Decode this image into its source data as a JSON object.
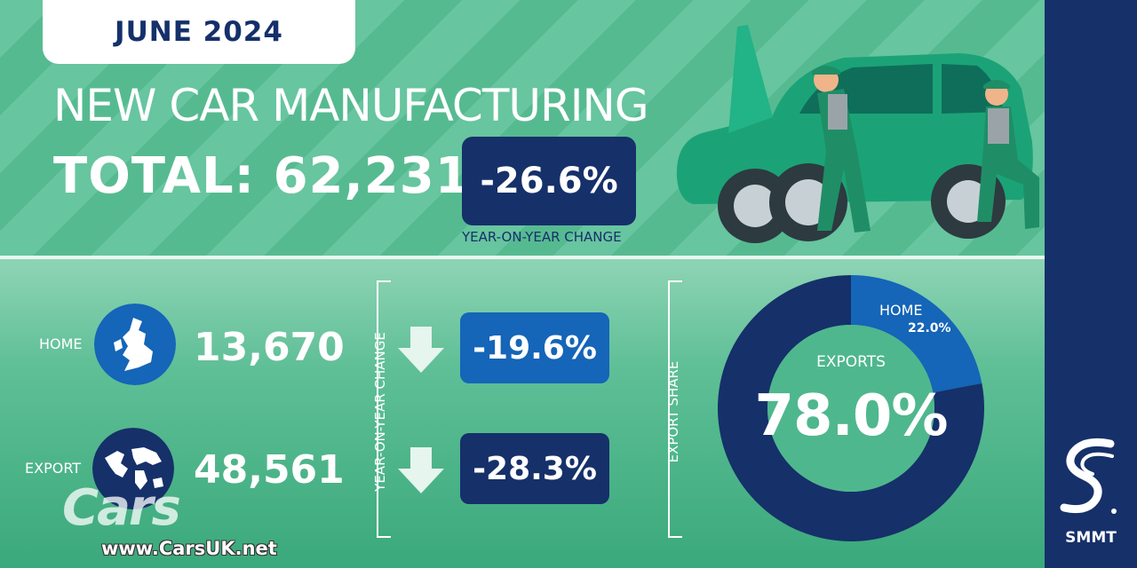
{
  "header": {
    "date": "JUNE 2024",
    "title": "NEW CAR MANUFACTURING",
    "total_text": "TOTAL: 62,231",
    "total_change": "-26.6%",
    "total_change_label": "YEAR-ON-YEAR CHANGE"
  },
  "rows": [
    {
      "label": "HOME",
      "value": "13,670",
      "change": "-19.6%",
      "box_color": "#1565b8"
    },
    {
      "label": "EXPORT",
      "value": "48,561",
      "change": "-28.3%",
      "box_color": "#16306a"
    }
  ],
  "yoy_vertical_label": "YEAR-ON-YEAR CHANGE",
  "export_share_label": "EXPORT SHARE",
  "colors": {
    "navy": "#16306a",
    "blue": "#1565b8",
    "green_inner": "#4fb78d",
    "arrow_fill": "#e6f5ee"
  },
  "chart_data": {
    "type": "pie",
    "donut": true,
    "slices": [
      {
        "label": "EXPORTS",
        "value": 78.0,
        "display": "78.0%",
        "color": "#16306a"
      },
      {
        "label": "HOME",
        "value": 22.0,
        "display": "22.0%",
        "color": "#1565b8"
      }
    ]
  },
  "brand": {
    "name": "SMMT"
  },
  "watermark": {
    "logo": "Cars",
    "url": "www.CarsUK.net"
  }
}
